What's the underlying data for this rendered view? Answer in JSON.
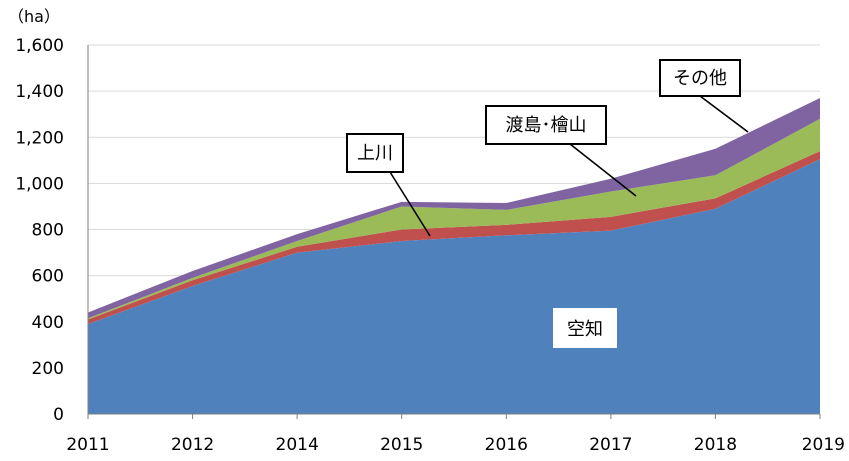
{
  "chart_data": {
    "type": "area",
    "stacked": true,
    "unit_label": "（ha）",
    "x": [
      "2011",
      "2012",
      "2014",
      "2015",
      "2016",
      "2017",
      "2018",
      "2019"
    ],
    "ylim": [
      0,
      1600
    ],
    "yticks": [
      "0",
      "200",
      "400",
      "600",
      "800",
      "1,000",
      "1,200",
      "1,400",
      "1,600"
    ],
    "ytick_values": [
      0,
      200,
      400,
      600,
      800,
      1000,
      1200,
      1400,
      1600
    ],
    "grid": true,
    "series": [
      {
        "name": "空知",
        "color": "#4f81bd",
        "values": [
          390,
          555,
          700,
          750,
          775,
          795,
          890,
          1105
        ]
      },
      {
        "name": "上川",
        "color": "#c0504d",
        "values": [
          20,
          25,
          25,
          50,
          45,
          60,
          45,
          35
        ]
      },
      {
        "name": "渡島･檜山",
        "color": "#9bbb59",
        "values": [
          5,
          10,
          25,
          100,
          65,
          110,
          100,
          140
        ]
      },
      {
        "name": "その他",
        "color": "#8064a2",
        "values": [
          25,
          30,
          30,
          20,
          30,
          55,
          115,
          90
        ]
      }
    ]
  }
}
